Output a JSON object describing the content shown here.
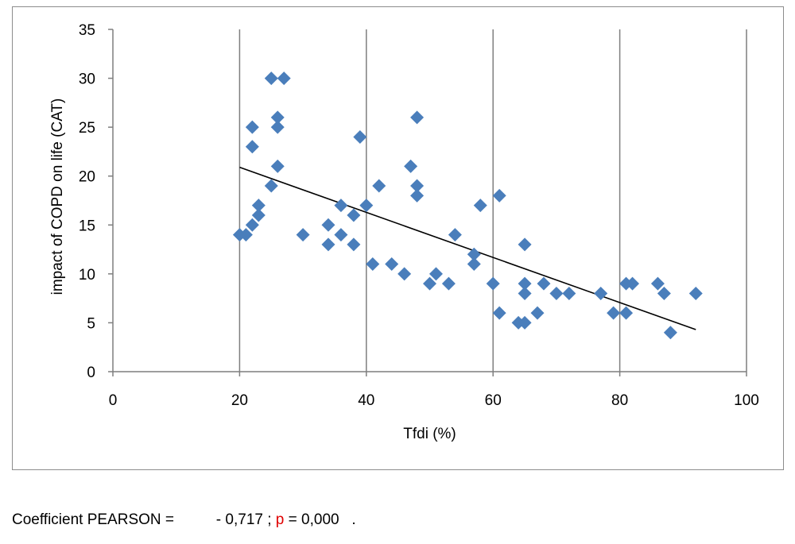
{
  "chart_data": {
    "type": "scatter",
    "xlabel": "Tfdi (%)",
    "ylabel": "impact of COPD on life (CAT)",
    "xlim": [
      0,
      100
    ],
    "ylim": [
      0,
      35
    ],
    "xticks": [
      0,
      20,
      40,
      60,
      80,
      100
    ],
    "yticks": [
      0,
      5,
      10,
      15,
      20,
      25,
      30,
      35
    ],
    "grid": "vertical",
    "marker": "diamond",
    "marker_color": "#4a7ebb",
    "series": [
      {
        "points": [
          [
            20,
            14
          ],
          [
            21,
            14
          ],
          [
            22,
            15
          ],
          [
            22,
            23
          ],
          [
            22,
            25
          ],
          [
            23,
            16
          ],
          [
            23,
            17
          ],
          [
            25,
            19
          ],
          [
            25,
            30
          ],
          [
            26,
            21
          ],
          [
            26,
            25
          ],
          [
            26,
            26
          ],
          [
            27,
            30
          ],
          [
            30,
            14
          ],
          [
            34,
            13
          ],
          [
            34,
            15
          ],
          [
            36,
            14
          ],
          [
            36,
            17
          ],
          [
            38,
            13
          ],
          [
            38,
            16
          ],
          [
            39,
            24
          ],
          [
            40,
            17
          ],
          [
            41,
            11
          ],
          [
            42,
            19
          ],
          [
            44,
            11
          ],
          [
            46,
            10
          ],
          [
            47,
            21
          ],
          [
            48,
            18
          ],
          [
            48,
            19
          ],
          [
            48,
            26
          ],
          [
            50,
            9
          ],
          [
            51,
            10
          ],
          [
            53,
            9
          ],
          [
            54,
            14
          ],
          [
            57,
            11
          ],
          [
            57,
            12
          ],
          [
            58,
            17
          ],
          [
            60,
            9
          ],
          [
            61,
            6
          ],
          [
            61,
            18
          ],
          [
            64,
            5
          ],
          [
            65,
            5
          ],
          [
            65,
            8
          ],
          [
            65,
            9
          ],
          [
            65,
            13
          ],
          [
            67,
            6
          ],
          [
            68,
            9
          ],
          [
            70,
            8
          ],
          [
            72,
            8
          ],
          [
            77,
            8
          ],
          [
            79,
            6
          ],
          [
            81,
            6
          ],
          [
            81,
            9
          ],
          [
            82,
            9
          ],
          [
            86,
            9
          ],
          [
            87,
            8
          ],
          [
            88,
            4
          ],
          [
            92,
            8
          ]
        ]
      }
    ],
    "trendline": {
      "x": [
        20,
        92
      ],
      "y": [
        20.9,
        4.3
      ],
      "color": "#000000"
    }
  },
  "stats": {
    "coef_label": "Coefficient PEARSON =",
    "coef_value": "- 0,717 ;",
    "p_label": "p",
    "p_value": "= 0,000",
    "dot": "."
  }
}
